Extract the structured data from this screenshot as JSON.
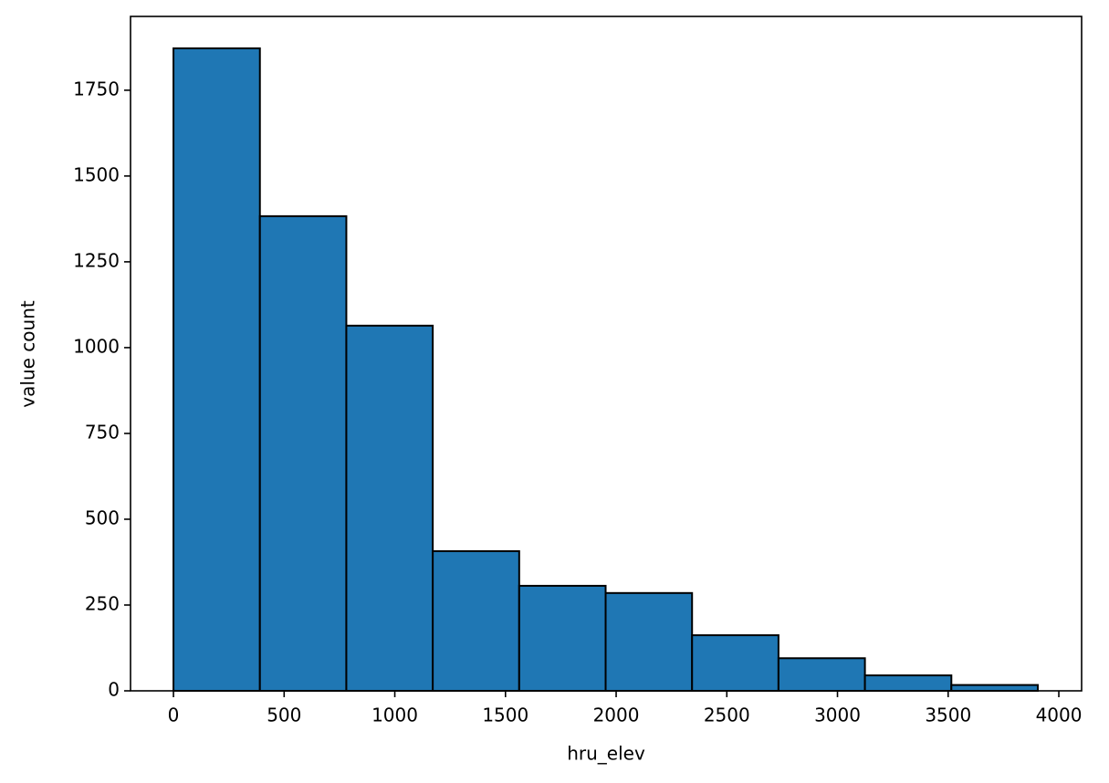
{
  "chart_data": {
    "type": "histogram",
    "x_label": "hru_elev",
    "y_label": "value count",
    "bins": [
      0,
      390.5,
      781,
      1171.5,
      1562,
      1952.5,
      2343,
      2733.5,
      3124,
      3514.5,
      3905
    ],
    "values": [
      1872,
      1383,
      1064,
      407,
      306,
      285,
      162,
      95,
      45,
      17
    ],
    "color": "#1f77b4",
    "edgecolor": "#000000",
    "xlim": [
      -194,
      4103
    ],
    "ylim": [
      0,
      1965
    ],
    "xticks": [
      0,
      500,
      1000,
      1500,
      2000,
      2500,
      3000,
      3500,
      4000
    ],
    "yticks": [
      0,
      250,
      500,
      750,
      1000,
      1250,
      1500,
      1750
    ]
  }
}
